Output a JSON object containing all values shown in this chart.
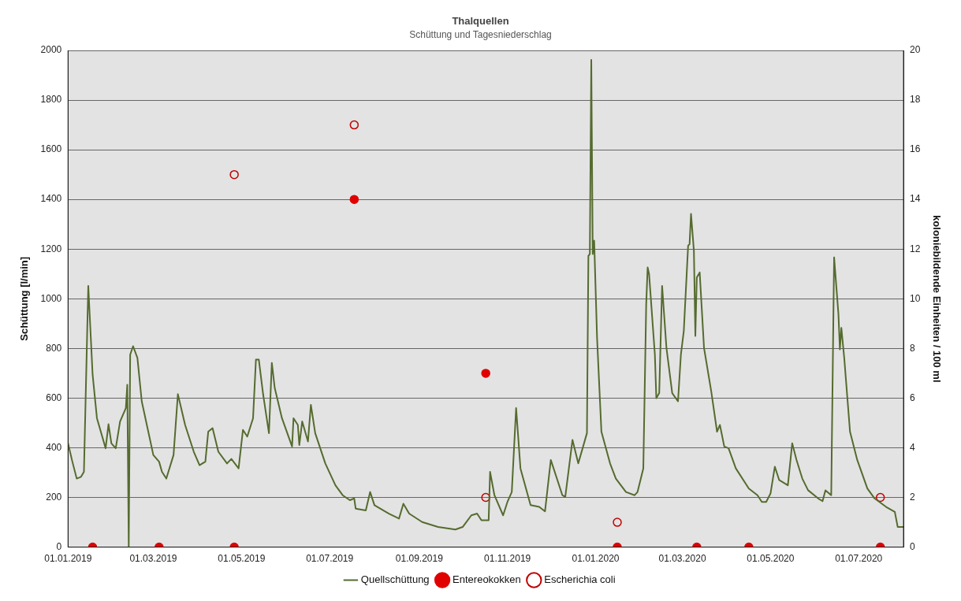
{
  "chart_data": {
    "type": "line",
    "title": "Thalquellen",
    "subtitle": "Schüttung und Tagesniederschlag",
    "ylabel": "Schüttung [l/min]",
    "y2label": "koloniebildende Einheiten / 100 ml",
    "xlim": [
      "2019-01-01",
      "2020-08-01"
    ],
    "xticks": [
      {
        "value": "2019-01-01",
        "label": "01.01.2019"
      },
      {
        "value": "2019-03-01",
        "label": "01.03.2019"
      },
      {
        "value": "2019-05-01",
        "label": "01.05.2019"
      },
      {
        "value": "2019-07-01",
        "label": "01.07.2019"
      },
      {
        "value": "2019-09-01",
        "label": "01.09.2019"
      },
      {
        "value": "2019-11-01",
        "label": "01.11.2019"
      },
      {
        "value": "2020-01-01",
        "label": "01.01.2020"
      },
      {
        "value": "2020-03-01",
        "label": "01.03.2020"
      },
      {
        "value": "2020-05-01",
        "label": "01.05.2020"
      },
      {
        "value": "2020-07-01",
        "label": "01.07.2020"
      }
    ],
    "ylim": [
      0,
      2000
    ],
    "yticks": [
      0,
      200,
      400,
      600,
      800,
      1000,
      1200,
      1400,
      1600,
      1800,
      2000
    ],
    "y2lim": [
      0,
      20
    ],
    "y2ticks": [
      0,
      2,
      4,
      6,
      8,
      10,
      12,
      14,
      16,
      18,
      20
    ],
    "grid": "y",
    "legend": "bottom",
    "series": [
      {
        "name": "Quellschüttung",
        "type": "line",
        "color": "#556b2f",
        "marker": "none",
        "line_style": "solid",
        "x": [
          "2019-01-01",
          "2019-01-04",
          "2019-01-07",
          "2019-01-10",
          "2019-01-12",
          "2019-01-15",
          "2019-01-18",
          "2019-01-21",
          "2019-01-27",
          "2019-01-29",
          "2019-01-31",
          "2019-02-03",
          "2019-02-06",
          "2019-02-10",
          "2019-02-11",
          "2019-02-12",
          "2019-02-13",
          "2019-02-15",
          "2019-02-18",
          "2019-02-21",
          "2019-02-26",
          "2019-03-01",
          "2019-03-05",
          "2019-03-07",
          "2019-03-10",
          "2019-03-15",
          "2019-03-18",
          "2019-03-23",
          "2019-03-29",
          "2019-04-02",
          "2019-04-06",
          "2019-04-08",
          "2019-04-11",
          "2019-04-15",
          "2019-04-21",
          "2019-04-24",
          "2019-04-29",
          "2019-05-02",
          "2019-05-05",
          "2019-05-09",
          "2019-05-11",
          "2019-05-13",
          "2019-05-16",
          "2019-05-20",
          "2019-05-22",
          "2019-05-24",
          "2019-05-29",
          "2019-06-05",
          "2019-06-06",
          "2019-06-09",
          "2019-06-10",
          "2019-06-12",
          "2019-06-16",
          "2019-06-18",
          "2019-06-21",
          "2019-06-28",
          "2019-07-05",
          "2019-07-10",
          "2019-07-15",
          "2019-07-18",
          "2019-07-19",
          "2019-07-26",
          "2019-07-29",
          "2019-08-01",
          "2019-08-11",
          "2019-08-18",
          "2019-08-21",
          "2019-08-25",
          "2019-09-03",
          "2019-09-14",
          "2019-09-26",
          "2019-10-01",
          "2019-10-07",
          "2019-10-11",
          "2019-10-14",
          "2019-10-19",
          "2019-10-20",
          "2019-10-23",
          "2019-10-29",
          "2019-11-01",
          "2019-11-04",
          "2019-11-07",
          "2019-11-10",
          "2019-11-17",
          "2019-11-23",
          "2019-11-27",
          "2019-12-01",
          "2019-12-09",
          "2019-12-11",
          "2019-12-16",
          "2019-12-20",
          "2019-12-23",
          "2019-12-26",
          "2019-12-27",
          "2019-12-28",
          "2019-12-29",
          "2019-12-30",
          "2019-12-31",
          "2020-01-02",
          "2020-01-05",
          "2020-01-11",
          "2020-01-15",
          "2020-01-22",
          "2020-01-28",
          "2020-01-30",
          "2020-02-03",
          "2020-02-05",
          "2020-02-06",
          "2020-02-07",
          "2020-02-11",
          "2020-02-12",
          "2020-02-14",
          "2020-02-16",
          "2020-02-19",
          "2020-02-23",
          "2020-02-27",
          "2020-02-29",
          "2020-03-02",
          "2020-03-05",
          "2020-03-06",
          "2020-03-07",
          "2020-03-09",
          "2020-03-10",
          "2020-03-11",
          "2020-03-13",
          "2020-03-16",
          "2020-03-21",
          "2020-03-25",
          "2020-03-27",
          "2020-03-30",
          "2020-04-02",
          "2020-04-07",
          "2020-04-16",
          "2020-04-22",
          "2020-04-25",
          "2020-04-28",
          "2020-05-01",
          "2020-05-04",
          "2020-05-07",
          "2020-05-13",
          "2020-05-16",
          "2020-05-19",
          "2020-05-23",
          "2020-05-27",
          "2020-06-03",
          "2020-06-06",
          "2020-06-08",
          "2020-06-12",
          "2020-06-14",
          "2020-06-17",
          "2020-06-18",
          "2020-06-19",
          "2020-06-21",
          "2020-06-25",
          "2020-06-30",
          "2020-07-07",
          "2020-07-12",
          "2020-07-20",
          "2020-07-26",
          "2020-07-28",
          "2020-08-01"
        ],
        "values": [
          418,
          344,
          276,
          283,
          303,
          1052,
          695,
          519,
          398,
          495,
          418,
          398,
          506,
          560,
          654,
          0,
          775,
          809,
          762,
          587,
          452,
          371,
          344,
          303,
          276,
          371,
          616,
          492,
          384,
          330,
          344,
          465,
          479,
          384,
          337,
          355,
          317,
          472,
          445,
          519,
          755,
          755,
          614,
          459,
          742,
          641,
          519,
          405,
          519,
          492,
          411,
          506,
          425,
          573,
          459,
          337,
          249,
          209,
          189,
          196,
          155,
          148,
          222,
          169,
          135,
          115,
          175,
          135,
          101,
          81,
          71,
          81,
          128,
          135,
          108,
          108,
          303,
          209,
          128,
          182,
          222,
          560,
          317,
          169,
          162,
          144,
          351,
          209,
          202,
          432,
          337,
          398,
          459,
          1173,
          1180,
          1962,
          1180,
          1234,
          843,
          465,
          337,
          276,
          222,
          209,
          222,
          317,
          978,
          1126,
          1099,
          775,
          600,
          620,
          1052,
          802,
          620,
          587,
          775,
          870,
          1214,
          1220,
          1342,
          1193,
          850,
          1086,
          1106,
          802,
          627,
          465,
          492,
          405,
          398,
          317,
          236,
          209,
          182,
          182,
          216,
          324,
          270,
          249,
          418,
          351,
          276,
          229,
          196,
          185,
          229,
          209,
          1167,
          937,
          796,
          883,
          762,
          465,
          351,
          236,
          196,
          162,
          142,
          81,
          81
        ]
      },
      {
        "name": "Entereokokken",
        "type": "scatter",
        "axis": "y2",
        "color": "#e00000",
        "marker": "circle",
        "x": [
          "2019-01-18",
          "2019-03-05",
          "2019-04-26",
          "2019-07-18",
          "2019-10-17",
          "2020-01-16",
          "2020-03-11",
          "2020-04-16",
          "2020-07-16"
        ],
        "values": [
          0,
          0,
          0,
          14,
          7,
          0,
          0,
          0,
          0
        ]
      },
      {
        "name": "Escherichia coli",
        "type": "scatter",
        "axis": "y2",
        "color": "#c00000",
        "marker": "circle",
        "x": [
          "2019-04-26",
          "2019-07-18",
          "2019-10-17",
          "2020-01-16",
          "2020-07-16"
        ],
        "values": [
          15,
          17,
          2,
          1,
          2
        ]
      }
    ]
  }
}
